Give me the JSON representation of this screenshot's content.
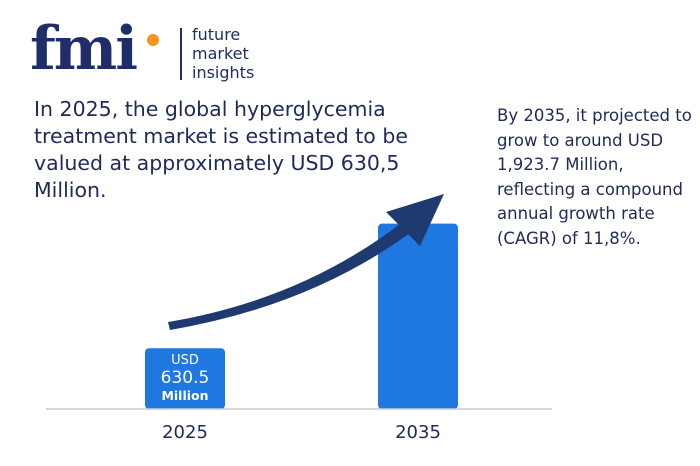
{
  "logo": {
    "mark": "fmi",
    "words": [
      "future",
      "market",
      "insights"
    ],
    "accent_color": "#f7941d",
    "brand_color": "#1f2d6b"
  },
  "headline": "In 2025, the global hyperglycemia treatment market is estimated to be valued at approximately USD 630,5 Million.",
  "side_note": "By 2035, it projected to grow to around USD 1,923.7 Million, reflecting a compound annual growth rate (CAGR) of 11,8%.",
  "chart_data": {
    "type": "bar",
    "categories": [
      "2025",
      "2035"
    ],
    "values": [
      630.5,
      1923.7
    ],
    "ylim": [
      0,
      3000
    ],
    "bar_labels": [
      {
        "line1": "USD",
        "line2": "630.5",
        "line3": "Million"
      },
      {
        "line1": "",
        "line2": "",
        "line3": ""
      }
    ],
    "bar_color": "#1f77e0",
    "arrow_color": "#1f3a6e",
    "grid": false,
    "legend": "none"
  }
}
